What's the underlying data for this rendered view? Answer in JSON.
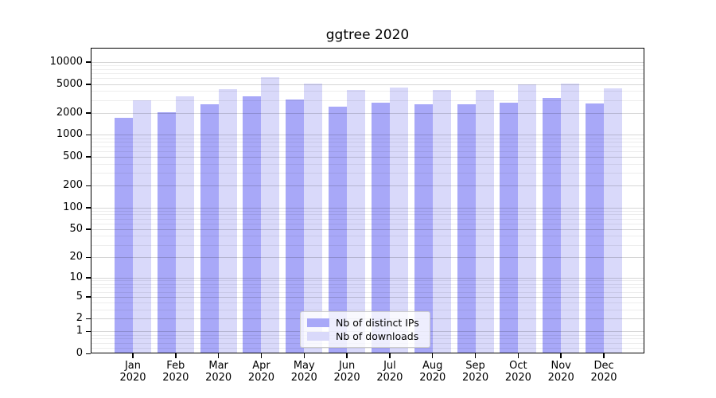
{
  "title": "ggtree 2020",
  "legend": {
    "items": [
      {
        "label": "Nb of distinct IPs",
        "color": "#a8a8f8"
      },
      {
        "label": "Nb of downloads",
        "color": "#d9d9fa"
      }
    ]
  },
  "y_axis": {
    "tick_values": [
      0,
      1,
      2,
      5,
      10,
      20,
      50,
      100,
      200,
      500,
      1000,
      2000,
      5000,
      10000
    ]
  },
  "x_axis": {
    "year": "2020"
  },
  "chart_data": {
    "type": "bar",
    "title": "ggtree 2020",
    "categories": [
      "Jan",
      "Feb",
      "Mar",
      "Apr",
      "May",
      "Jun",
      "Jul",
      "Aug",
      "Sep",
      "Oct",
      "Nov",
      "Dec"
    ],
    "x_tick_second_line": "2020",
    "series": [
      {
        "name": "Nb of distinct IPs",
        "color": "#a8a8f8",
        "values": [
          1720,
          2030,
          2650,
          3400,
          3050,
          2460,
          2740,
          2650,
          2650,
          2790,
          3180,
          2720
        ]
      },
      {
        "name": "Nb of downloads",
        "color": "#d9d9fa",
        "values": [
          3000,
          3350,
          4200,
          6150,
          5100,
          4100,
          4430,
          4100,
          4100,
          4950,
          5120,
          4340
        ]
      }
    ],
    "yscale": "log1p",
    "ylim": [
      0,
      15800
    ],
    "y_ticks": [
      0,
      1,
      2,
      5,
      10,
      20,
      50,
      100,
      200,
      500,
      1000,
      2000,
      5000,
      10000
    ],
    "grid": true,
    "legend_position": "lower center inside plot",
    "xlabel": "",
    "ylabel": ""
  }
}
